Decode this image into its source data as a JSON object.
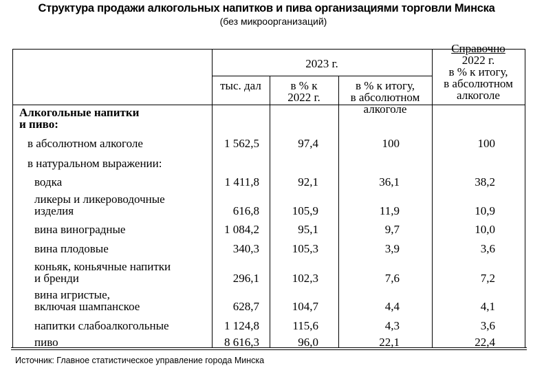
{
  "title": "Структура продажи алкогольных напитков и пива организациями торговли Минска",
  "subtitle": "(без микроорганизаций)",
  "header": {
    "group_2023": "2023 г.",
    "col_volume": "тыс. дал",
    "col_pct_prev": [
      "в % к",
      "2022 г."
    ],
    "col_pct_total": [
      "в % к итогу,",
      "в абсолютном",
      "алкоголе"
    ],
    "reference": [
      "Справочно",
      "2022 г.",
      "в % к итогу,",
      "в абсолютном",
      "алкоголе"
    ]
  },
  "section_heading": [
    "Алкогольные напитки",
    "и пиво:"
  ],
  "rows": [
    {
      "label": [
        "в абсолютном алкоголе"
      ],
      "indent": 1,
      "volume": "1 562,5",
      "pct_prev": "97,4",
      "pct_total": "100",
      "ref_2022": "100"
    },
    {
      "label": [
        "в натуральном выражении:"
      ],
      "indent": 1,
      "volume": "",
      "pct_prev": "",
      "pct_total": "",
      "ref_2022": ""
    },
    {
      "label": [
        "водка"
      ],
      "indent": 2,
      "volume": "1 411,8",
      "pct_prev": "92,1",
      "pct_total": "36,1",
      "ref_2022": "38,2"
    },
    {
      "label": [
        "ликеры и ликероводочные",
        "изделия"
      ],
      "indent": 2,
      "volume": "616,8",
      "pct_prev": "105,9",
      "pct_total": "11,9",
      "ref_2022": "10,9"
    },
    {
      "label": [
        "вина виноградные"
      ],
      "indent": 2,
      "volume": "1 084,2",
      "pct_prev": "95,1",
      "pct_total": "9,7",
      "ref_2022": "10,0"
    },
    {
      "label": [
        "вина плодовые"
      ],
      "indent": 2,
      "volume": "340,3",
      "pct_prev": "105,3",
      "pct_total": "3,9",
      "ref_2022": "3,6"
    },
    {
      "label": [
        "коньяк, коньячные напитки",
        "и бренди"
      ],
      "indent": 2,
      "volume": "296,1",
      "pct_prev": "102,3",
      "pct_total": "7,6",
      "ref_2022": "7,2"
    },
    {
      "label": [
        "вина игристые,",
        "включая шампанское"
      ],
      "indent": 2,
      "volume": "628,7",
      "pct_prev": "104,7",
      "pct_total": "4,4",
      "ref_2022": "4,1"
    },
    {
      "label": [
        "напитки слабоалкогольные"
      ],
      "indent": 2,
      "volume": "1 124,8",
      "pct_prev": "115,6",
      "pct_total": "4,3",
      "ref_2022": "3,6"
    },
    {
      "label": [
        "пиво"
      ],
      "indent": 2,
      "volume": "8 616,3",
      "pct_prev": "96,0",
      "pct_total": "22,1",
      "ref_2022": "22,4"
    }
  ],
  "source": "Источник: Главное статистическое управление города Минска"
}
